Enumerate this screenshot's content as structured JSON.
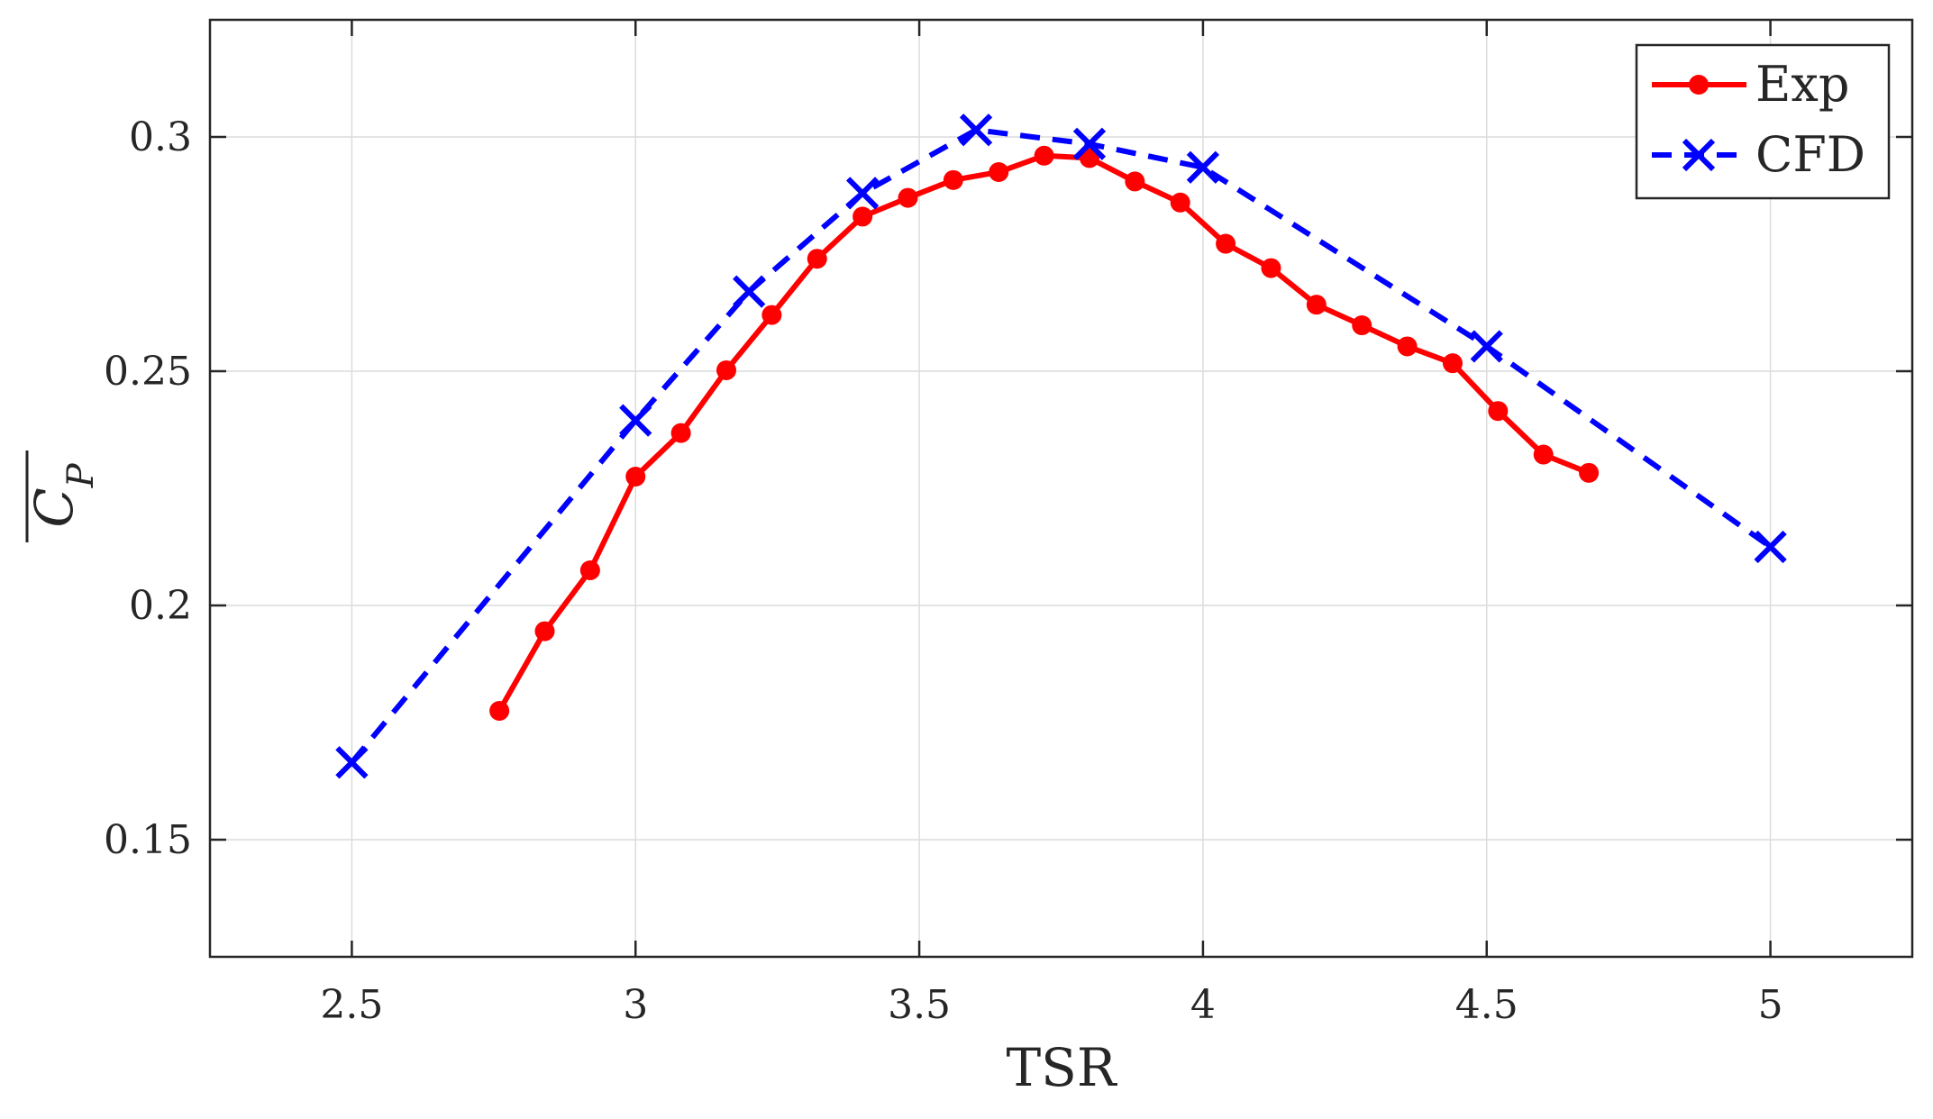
{
  "chart_data": {
    "type": "line",
    "xlabel": "TSR",
    "ylabel": "C_P",
    "xlim": [
      2.25,
      5.25
    ],
    "ylim": [
      0.125,
      0.325
    ],
    "xticks": [
      2.5,
      3,
      3.5,
      4,
      4.5,
      5
    ],
    "xtick_labels": [
      "2.5",
      "3",
      "3.5",
      "4",
      "4.5",
      "5"
    ],
    "yticks": [
      0.15,
      0.2,
      0.25,
      0.3
    ],
    "ytick_labels": [
      "0.15",
      "0.2",
      "0.25",
      "0.3"
    ],
    "grid": true,
    "legend_position": "top-right",
    "series": [
      {
        "name": "Exp",
        "color": "#ff0000",
        "line_style": "solid",
        "marker": "filled-circle",
        "x": [
          2.76,
          2.84,
          2.92,
          3.0,
          3.08,
          3.16,
          3.24,
          3.32,
          3.4,
          3.48,
          3.56,
          3.64,
          3.72,
          3.8,
          3.88,
          3.96,
          4.04,
          4.12,
          4.2,
          4.28,
          4.36,
          4.44,
          4.52,
          4.6,
          4.68
        ],
        "y": [
          0.1775,
          0.1945,
          0.2075,
          0.2275,
          0.2368,
          0.2502,
          0.262,
          0.274,
          0.283,
          0.287,
          0.2908,
          0.2925,
          0.296,
          0.2955,
          0.2905,
          0.286,
          0.2772,
          0.272,
          0.2642,
          0.2598,
          0.2553,
          0.2517,
          0.2415,
          0.2322,
          0.2283
        ]
      },
      {
        "name": "CFD",
        "color": "#0000ff",
        "line_style": "dashed",
        "marker": "x",
        "x": [
          2.5,
          3.0,
          3.2,
          3.4,
          3.6,
          3.8,
          4.0,
          4.5,
          5.0
        ],
        "y": [
          0.1665,
          0.2395,
          0.267,
          0.288,
          0.3015,
          0.2985,
          0.2935,
          0.2553,
          0.2125
        ]
      }
    ]
  }
}
